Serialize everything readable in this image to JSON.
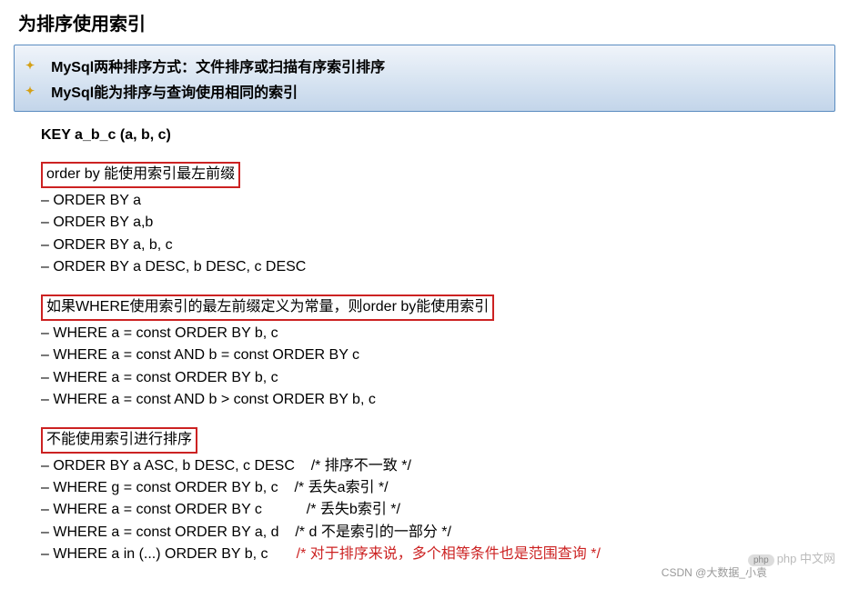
{
  "title": "为排序使用索引",
  "header": {
    "line1": "MySql两种排序方式：文件排序或扫描有序索引排序",
    "line2": "MySql能为排序与查询使用相同的索引"
  },
  "key_line": "KEY a_b_c (a, b, c)",
  "section1": {
    "header": "order by 能使用索引最左前缀",
    "items": [
      "– ORDER BY a",
      "– ORDER BY a,b",
      "– ORDER BY a, b, c",
      "– ORDER BY a DESC, b DESC, c DESC"
    ]
  },
  "section2": {
    "header": "如果WHERE使用索引的最左前缀定义为常量，则order by能使用索引",
    "items": [
      "– WHERE a = const ORDER BY b, c",
      "– WHERE a = const AND b = const ORDER BY c",
      "– WHERE a = const ORDER BY b, c",
      "– WHERE a = const AND b > const ORDER BY b, c"
    ]
  },
  "section3": {
    "header": "不能使用索引进行排序",
    "items": [
      {
        "text": "– ORDER BY a ASC, b DESC, c DESC",
        "comment": "/* 排序不一致 */",
        "red": false
      },
      {
        "text": "– WHERE g = const ORDER BY b, c",
        "comment": "/* 丢失a索引 */",
        "red": false
      },
      {
        "text": "– WHERE a = const ORDER BY c",
        "comment": "/* 丢失b索引 */",
        "red": false
      },
      {
        "text": "– WHERE a = const ORDER BY a, d",
        "comment": "/* d 不是索引的一部分 */",
        "red": false
      },
      {
        "text": "– WHERE a in (...) ORDER BY b, c",
        "comment": "/* 对于排序来说，多个相等条件也是范围查询 */",
        "red": true
      }
    ]
  },
  "watermark1": "php 中文网",
  "watermark2": "CSDN @大数据_小袁",
  "colors": {
    "red_border": "#cc2222",
    "header_border": "#5a8cc0",
    "bullet": "#d4a017"
  }
}
